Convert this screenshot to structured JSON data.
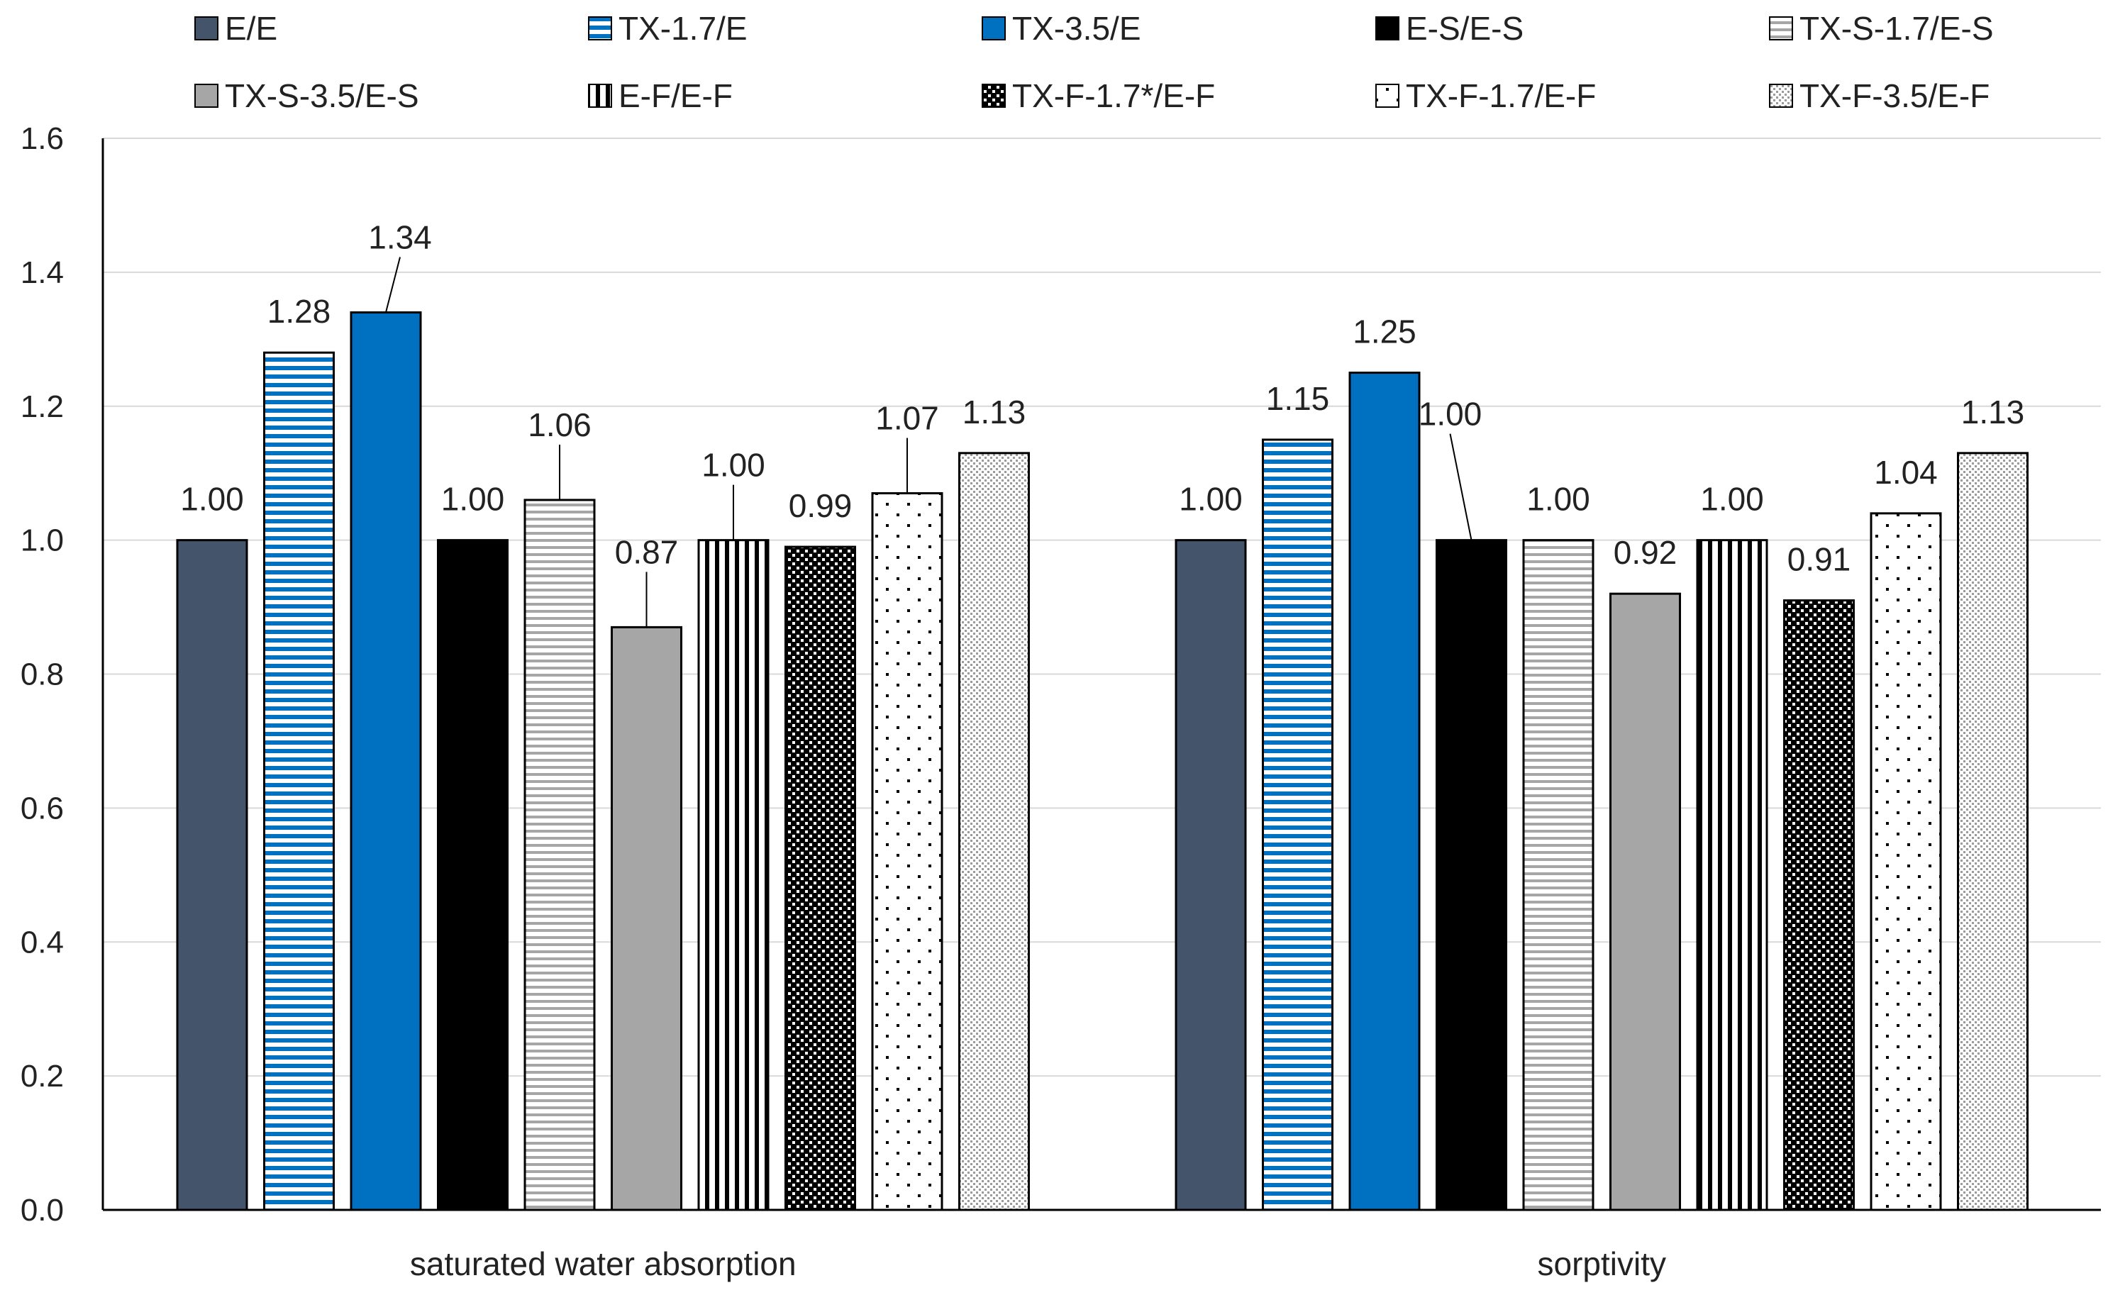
{
  "chart_data": {
    "type": "bar",
    "title": "",
    "xlabel": "",
    "ylabel": "",
    "ylim": [
      0,
      1.6
    ],
    "ytick_step": 0.2,
    "yticks": [
      "0.0",
      "0.2",
      "0.4",
      "0.6",
      "0.8",
      "1.0",
      "1.2",
      "1.4",
      "1.6"
    ],
    "grid": true,
    "legend_position": "top",
    "categories": [
      "saturated water absorption",
      "sorptivity"
    ],
    "series": [
      {
        "name": "E/E",
        "values": [
          1.0,
          1.0
        ],
        "labels": [
          "1.00",
          "1.00"
        ],
        "pattern": "solid-slate",
        "color": "#44546A"
      },
      {
        "name": "TX-1.7/E",
        "values": [
          1.28,
          1.15
        ],
        "labels": [
          "1.28",
          "1.15"
        ],
        "pattern": "hstripe-blue",
        "color": "#0070C0"
      },
      {
        "name": "TX-3.5/E",
        "values": [
          1.34,
          1.25
        ],
        "labels": [
          "1.34",
          "1.25"
        ],
        "pattern": "solid-blue",
        "color": "#0070C0"
      },
      {
        "name": "E-S/E-S",
        "values": [
          1.0,
          1.0
        ],
        "labels": [
          "1.00",
          "1.00"
        ],
        "pattern": "solid-black",
        "color": "#000000"
      },
      {
        "name": "TX-S-1.7/E-S",
        "values": [
          1.06,
          1.0
        ],
        "labels": [
          "1.06",
          "1.00"
        ],
        "pattern": "hstripe-gray",
        "color": "#A6A6A6"
      },
      {
        "name": "TX-S-3.5/E-S",
        "values": [
          0.87,
          0.92
        ],
        "labels": [
          "0.87",
          "0.92"
        ],
        "pattern": "solid-gray",
        "color": "#A6A6A6"
      },
      {
        "name": "E-F/E-F",
        "values": [
          1.0,
          1.0
        ],
        "labels": [
          "1.00",
          "1.00"
        ],
        "pattern": "vstripe",
        "color": "#000000"
      },
      {
        "name": "TX-F-1.7*/E-F",
        "values": [
          0.99,
          0.91
        ],
        "labels": [
          "0.99",
          "0.91"
        ],
        "pattern": "checker",
        "color": "#000000"
      },
      {
        "name": "TX-F-1.7/E-F",
        "values": [
          1.07,
          1.04
        ],
        "labels": [
          "1.07",
          "1.04"
        ],
        "pattern": "sparse-dots",
        "color": "#000000"
      },
      {
        "name": "TX-F-3.5/E-F",
        "values": [
          1.13,
          1.13
        ],
        "labels": [
          "1.13",
          "1.13"
        ],
        "pattern": "dense-dots",
        "color": "#888888"
      }
    ],
    "colors": {
      "axis": "#000000",
      "grid": "#D9D9D9",
      "text": "#222222"
    }
  }
}
